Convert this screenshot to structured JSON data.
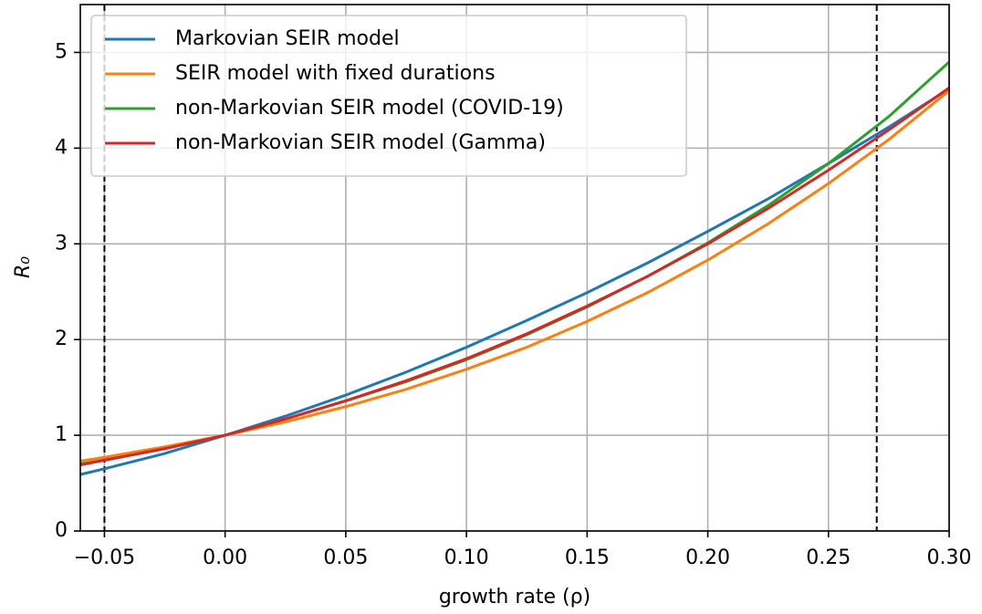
{
  "chart_data": {
    "type": "line",
    "xlabel": "growth rate (ρ)",
    "ylabel": "R₀",
    "x": [
      -0.06,
      -0.05,
      -0.025,
      0,
      0.025,
      0.05,
      0.075,
      0.1,
      0.125,
      0.15,
      0.175,
      0.2,
      0.225,
      0.25,
      0.275,
      0.3
    ],
    "series": [
      {
        "name": "Markovian SEIR model",
        "color": "#1f77b4",
        "values": [
          0.59,
          0.65,
          0.81,
          1,
          1.2,
          1.42,
          1.66,
          1.92,
          2.2,
          2.49,
          2.8,
          3.13,
          3.47,
          3.84,
          4.22,
          4.62
        ]
      },
      {
        "name": "SEIR model with fixed durations",
        "color": "#ff7f0e",
        "values": [
          0.73,
          0.77,
          0.88,
          1,
          1.14,
          1.3,
          1.48,
          1.69,
          1.92,
          2.19,
          2.49,
          2.83,
          3.21,
          3.63,
          4.09,
          4.6
        ]
      },
      {
        "name": "non-Markovian SEIR model (COVID-19)",
        "color": "#2ca02c",
        "values": [
          0.7,
          0.74,
          0.86,
          1,
          1.17,
          1.36,
          1.56,
          1.79,
          2.05,
          2.34,
          2.66,
          3.01,
          3.4,
          3.84,
          4.33,
          4.9
        ]
      },
      {
        "name": "non-Markovian SEIR model (Gamma)",
        "color": "#d62728",
        "values": [
          0.69,
          0.74,
          0.86,
          1,
          1.17,
          1.36,
          1.57,
          1.8,
          2.06,
          2.35,
          2.66,
          3.0,
          3.37,
          3.77,
          4.19,
          4.63
        ]
      }
    ],
    "vlines": [
      -0.05,
      0.27
    ],
    "xlim": [
      -0.06,
      0.3
    ],
    "xticks": [
      {
        "value": -0.05,
        "label": "−0.05"
      },
      {
        "value": 0,
        "label": "0.00"
      },
      {
        "value": 0.05,
        "label": "0.05"
      },
      {
        "value": 0.1,
        "label": "0.10"
      },
      {
        "value": 0.15,
        "label": "0.15"
      },
      {
        "value": 0.2,
        "label": "0.20"
      },
      {
        "value": 0.25,
        "label": "0.25"
      },
      {
        "value": 0.3,
        "label": "0.30"
      }
    ],
    "ylim": [
      0,
      5.5
    ],
    "yticks": [
      0,
      1,
      2,
      3,
      4,
      5
    ],
    "grid": true,
    "legend": "upper-left"
  }
}
